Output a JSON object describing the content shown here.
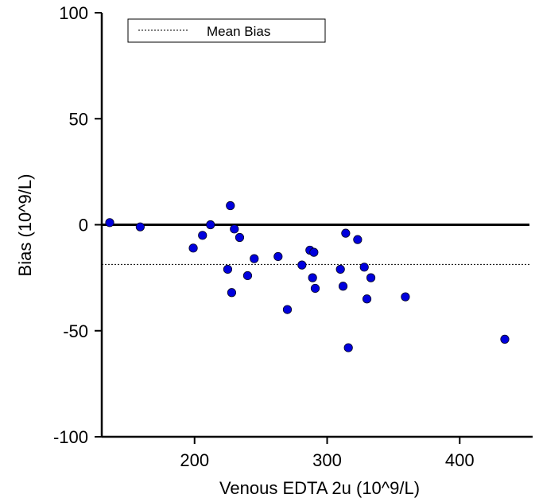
{
  "chart_data": {
    "type": "scatter",
    "xlabel": "Venous EDTA 2u (10^9/L)",
    "ylabel": "Bias (10^9/L)",
    "xlim": [
      130,
      455
    ],
    "ylim": [
      -100,
      100
    ],
    "x_ticks": [
      200,
      300,
      400
    ],
    "y_ticks": [
      100,
      50,
      0,
      -50,
      -100
    ],
    "x_tick_labels": [
      "200",
      "300",
      "400"
    ],
    "y_tick_labels": [
      "100",
      "50",
      "0",
      "-50",
      "-100"
    ],
    "zero_line": 0,
    "mean_bias": -18.7,
    "legend": {
      "label": "Mean Bias",
      "placement": "top-left"
    },
    "grid": false,
    "point_color": "#0000dd",
    "points": [
      {
        "x": 136,
        "y": 1
      },
      {
        "x": 159,
        "y": -1
      },
      {
        "x": 199,
        "y": -11
      },
      {
        "x": 206,
        "y": -5
      },
      {
        "x": 212,
        "y": 0
      },
      {
        "x": 225,
        "y": -21
      },
      {
        "x": 227,
        "y": 9
      },
      {
        "x": 228,
        "y": -32
      },
      {
        "x": 230,
        "y": -2
      },
      {
        "x": 234,
        "y": -6
      },
      {
        "x": 240,
        "y": -24
      },
      {
        "x": 245,
        "y": -16
      },
      {
        "x": 263,
        "y": -15
      },
      {
        "x": 270,
        "y": -40
      },
      {
        "x": 281,
        "y": -19
      },
      {
        "x": 287,
        "y": -12
      },
      {
        "x": 289,
        "y": -25
      },
      {
        "x": 290,
        "y": -13
      },
      {
        "x": 291,
        "y": -30
      },
      {
        "x": 310,
        "y": -21
      },
      {
        "x": 312,
        "y": -29
      },
      {
        "x": 314,
        "y": -4
      },
      {
        "x": 316,
        "y": -58
      },
      {
        "x": 323,
        "y": -7
      },
      {
        "x": 328,
        "y": -20
      },
      {
        "x": 330,
        "y": -35
      },
      {
        "x": 333,
        "y": -25
      },
      {
        "x": 359,
        "y": -34
      },
      {
        "x": 434,
        "y": -54
      }
    ]
  }
}
